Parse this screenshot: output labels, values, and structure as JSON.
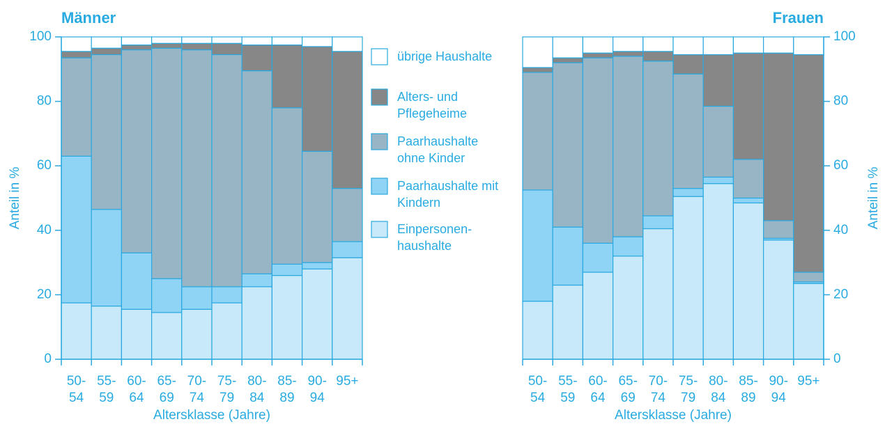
{
  "chart_data": [
    {
      "type": "stacked_bar",
      "title": "Männer",
      "y_label": "Anteil in %",
      "x_label": "Altersklasse (Jahre)",
      "axis_side": "left",
      "categories": [
        "50-54",
        "55-59",
        "60-64",
        "65-69",
        "70-74",
        "75-79",
        "80-84",
        "85-89",
        "90-94",
        "95+"
      ],
      "ylim": [
        0,
        100
      ],
      "yticks": [
        0,
        20,
        40,
        60,
        80,
        100
      ],
      "series": [
        {
          "name": "Einpersonen-haushalte",
          "color": "#c7e9f9",
          "values": [
            17.5,
            16.5,
            15.5,
            14.5,
            15.5,
            17.5,
            22.5,
            26,
            28,
            31.5
          ]
        },
        {
          "name": "Paarhaushalte mit Kindern",
          "color": "#8fd3f5",
          "values": [
            45.5,
            30,
            17.5,
            10.5,
            7,
            5,
            4,
            3.5,
            2,
            5
          ]
        },
        {
          "name": "Paarhaushalte ohne Kinder",
          "color": "#98b5c6",
          "values": [
            30.5,
            48,
            63,
            71.5,
            73.5,
            72,
            63,
            48.5,
            34.5,
            16.5
          ]
        },
        {
          "name": "Alters- und Pflegeheime",
          "color": "#878787",
          "values": [
            2,
            2,
            1.5,
            1.5,
            2,
            3.5,
            8,
            19.5,
            32.5,
            42.5
          ]
        },
        {
          "name": "übrige Haushalte",
          "color": "#ffffff",
          "values": [
            4.5,
            3.5,
            2.5,
            2,
            2,
            2,
            2.5,
            2.5,
            3,
            4.5
          ]
        }
      ]
    },
    {
      "type": "stacked_bar",
      "title": "Frauen",
      "y_label": "Anteil in %",
      "x_label": "Altersklasse (Jahre)",
      "axis_side": "right",
      "categories": [
        "50-54",
        "55-59",
        "60-64",
        "65-69",
        "70-74",
        "75-79",
        "80-84",
        "85-89",
        "90-94",
        "95+"
      ],
      "ylim": [
        0,
        100
      ],
      "yticks": [
        0,
        20,
        40,
        60,
        80,
        100
      ],
      "series": [
        {
          "values": [
            18,
            23,
            27,
            32,
            40.5,
            50.5,
            54.5,
            48.5,
            37,
            23.5
          ]
        },
        {
          "values": [
            34.5,
            18,
            9,
            6,
            4,
            2.5,
            2,
            1.5,
            0.5,
            0.5
          ]
        },
        {
          "values": [
            36.5,
            51,
            57.5,
            56,
            48,
            35.5,
            22,
            12,
            5.5,
            3
          ]
        },
        {
          "values": [
            1.5,
            1.5,
            1.5,
            1.5,
            3,
            6,
            16,
            33,
            52,
            67.5
          ]
        },
        {
          "values": [
            9.5,
            6.5,
            5,
            4.5,
            4.5,
            5.5,
            5.5,
            5,
            5,
            5.5
          ]
        }
      ]
    }
  ]
}
